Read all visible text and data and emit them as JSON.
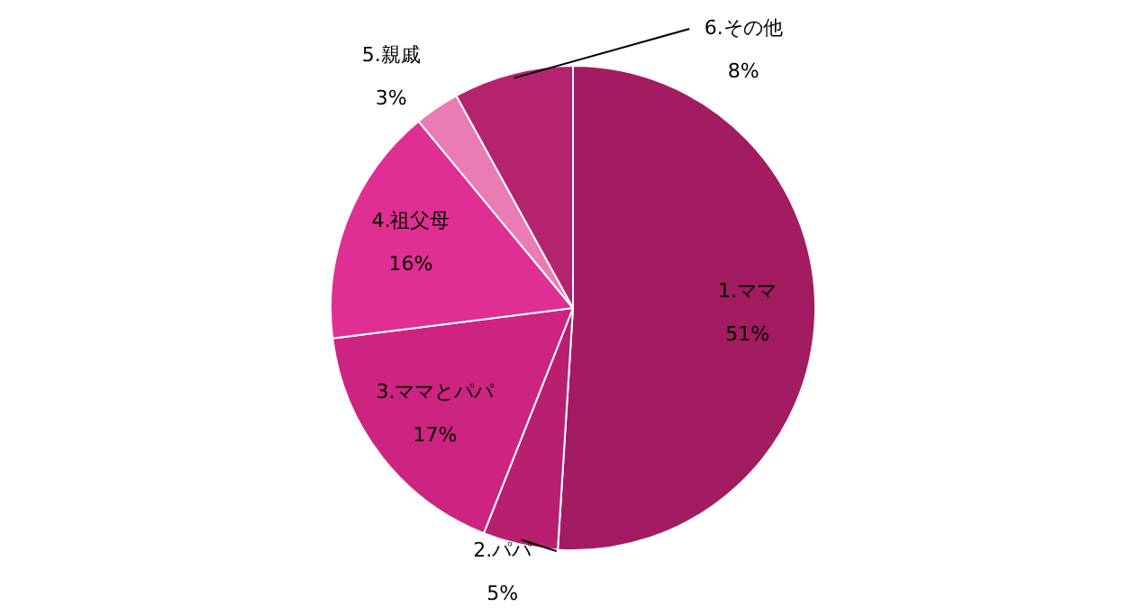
{
  "chart_data": {
    "type": "pie",
    "categories": [
      "1.ママ",
      "2.パパ",
      "3.ママとパパ",
      "4.祖父母",
      "5.親戚",
      "6.その他"
    ],
    "values": [
      51,
      5,
      17,
      16,
      3,
      8
    ],
    "colors": [
      "#a31b61",
      "#b91f6f",
      "#cd2381",
      "#e02f93",
      "#e97cb3",
      "#b5236f"
    ],
    "value_labels": [
      "51%",
      "5%",
      "17%",
      "16%",
      "3%",
      "8%"
    ],
    "legend": false
  }
}
